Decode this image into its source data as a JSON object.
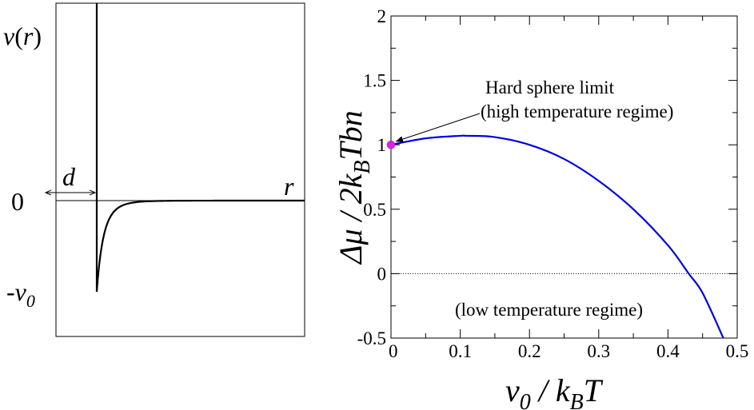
{
  "chart_data": [
    {
      "type": "line",
      "panel": "left",
      "ylabel_v": "v",
      "ylabel_paren_open": "(",
      "ylabel_r": "r",
      "ylabel_paren_close": ")",
      "xlabel": "r",
      "zero_label": "0",
      "neg_label_prefix": "-v",
      "neg_label_sub": "0",
      "d_label": "d",
      "series": [
        {
          "description": "hard core wall at r=d, attractive tail -v0*(d/r)^6 for r>d"
        }
      ],
      "params": {
        "d": 1,
        "v0": 1
      }
    },
    {
      "type": "line",
      "panel": "right",
      "xlim": [
        0,
        0.5
      ],
      "ylim": [
        -0.5,
        2
      ],
      "xticks": [
        "0",
        "0.1",
        "0.2",
        "0.3",
        "0.4",
        "0.5"
      ],
      "yticks": [
        "-0.5",
        "0",
        "0.5",
        "1",
        "1.5",
        "2"
      ],
      "xlabel": {
        "a": "v",
        "a_sub": "0",
        "b": " / k",
        "b_sub": "B",
        "c": "T"
      },
      "ylabel": {
        "a": "Δμ / 2k",
        "a_sub": "B",
        "b": "Tbn"
      },
      "annotations": {
        "hard_sphere_line1": "Hard sphere limit",
        "hard_sphere_line2": "(high temperature regime)",
        "low_temp": "(low temperature regime)"
      },
      "reference_line_y": 0,
      "marker": {
        "x": 0,
        "y": 1,
        "color": "#e020e0"
      },
      "series": [
        {
          "color": "#0000e0",
          "x": [
            0,
            0.05,
            0.1,
            0.11,
            0.15,
            0.2,
            0.25,
            0.3,
            0.35,
            0.4,
            0.43,
            0.45,
            0.48
          ],
          "y": [
            1.0,
            1.05,
            1.07,
            1.07,
            1.06,
            1.0,
            0.89,
            0.72,
            0.5,
            0.22,
            0.0,
            -0.15,
            -0.5
          ]
        }
      ]
    }
  ],
  "colors": {
    "curve": "#0000e0",
    "marker": "#e020e0",
    "axis": "#000000"
  }
}
